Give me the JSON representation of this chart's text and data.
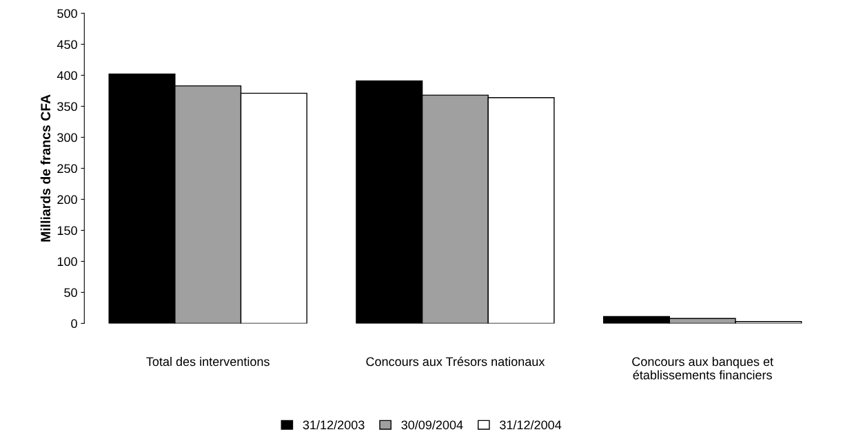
{
  "chart_data": {
    "type": "bar",
    "ylabel": "Milliards de francs CFA",
    "categories": [
      "Total des interventions",
      "Concours aux Trésors nationaux",
      "Concours aux banques et\nétablissements financiers"
    ],
    "series": [
      {
        "name": "31/12/2003",
        "color": "#000000",
        "values": [
          402,
          391,
          11
        ]
      },
      {
        "name": "30/09/2004",
        "color": "#a0a0a0",
        "values": [
          383,
          368,
          8
        ]
      },
      {
        "name": "31/12/2004",
        "color": "#ffffff",
        "values": [
          371,
          364,
          3
        ]
      }
    ],
    "ylim": [
      0,
      500
    ],
    "yticks": [
      0,
      50,
      100,
      150,
      200,
      250,
      300,
      350,
      400,
      450,
      500
    ],
    "grid": false,
    "legend": "bottom"
  }
}
